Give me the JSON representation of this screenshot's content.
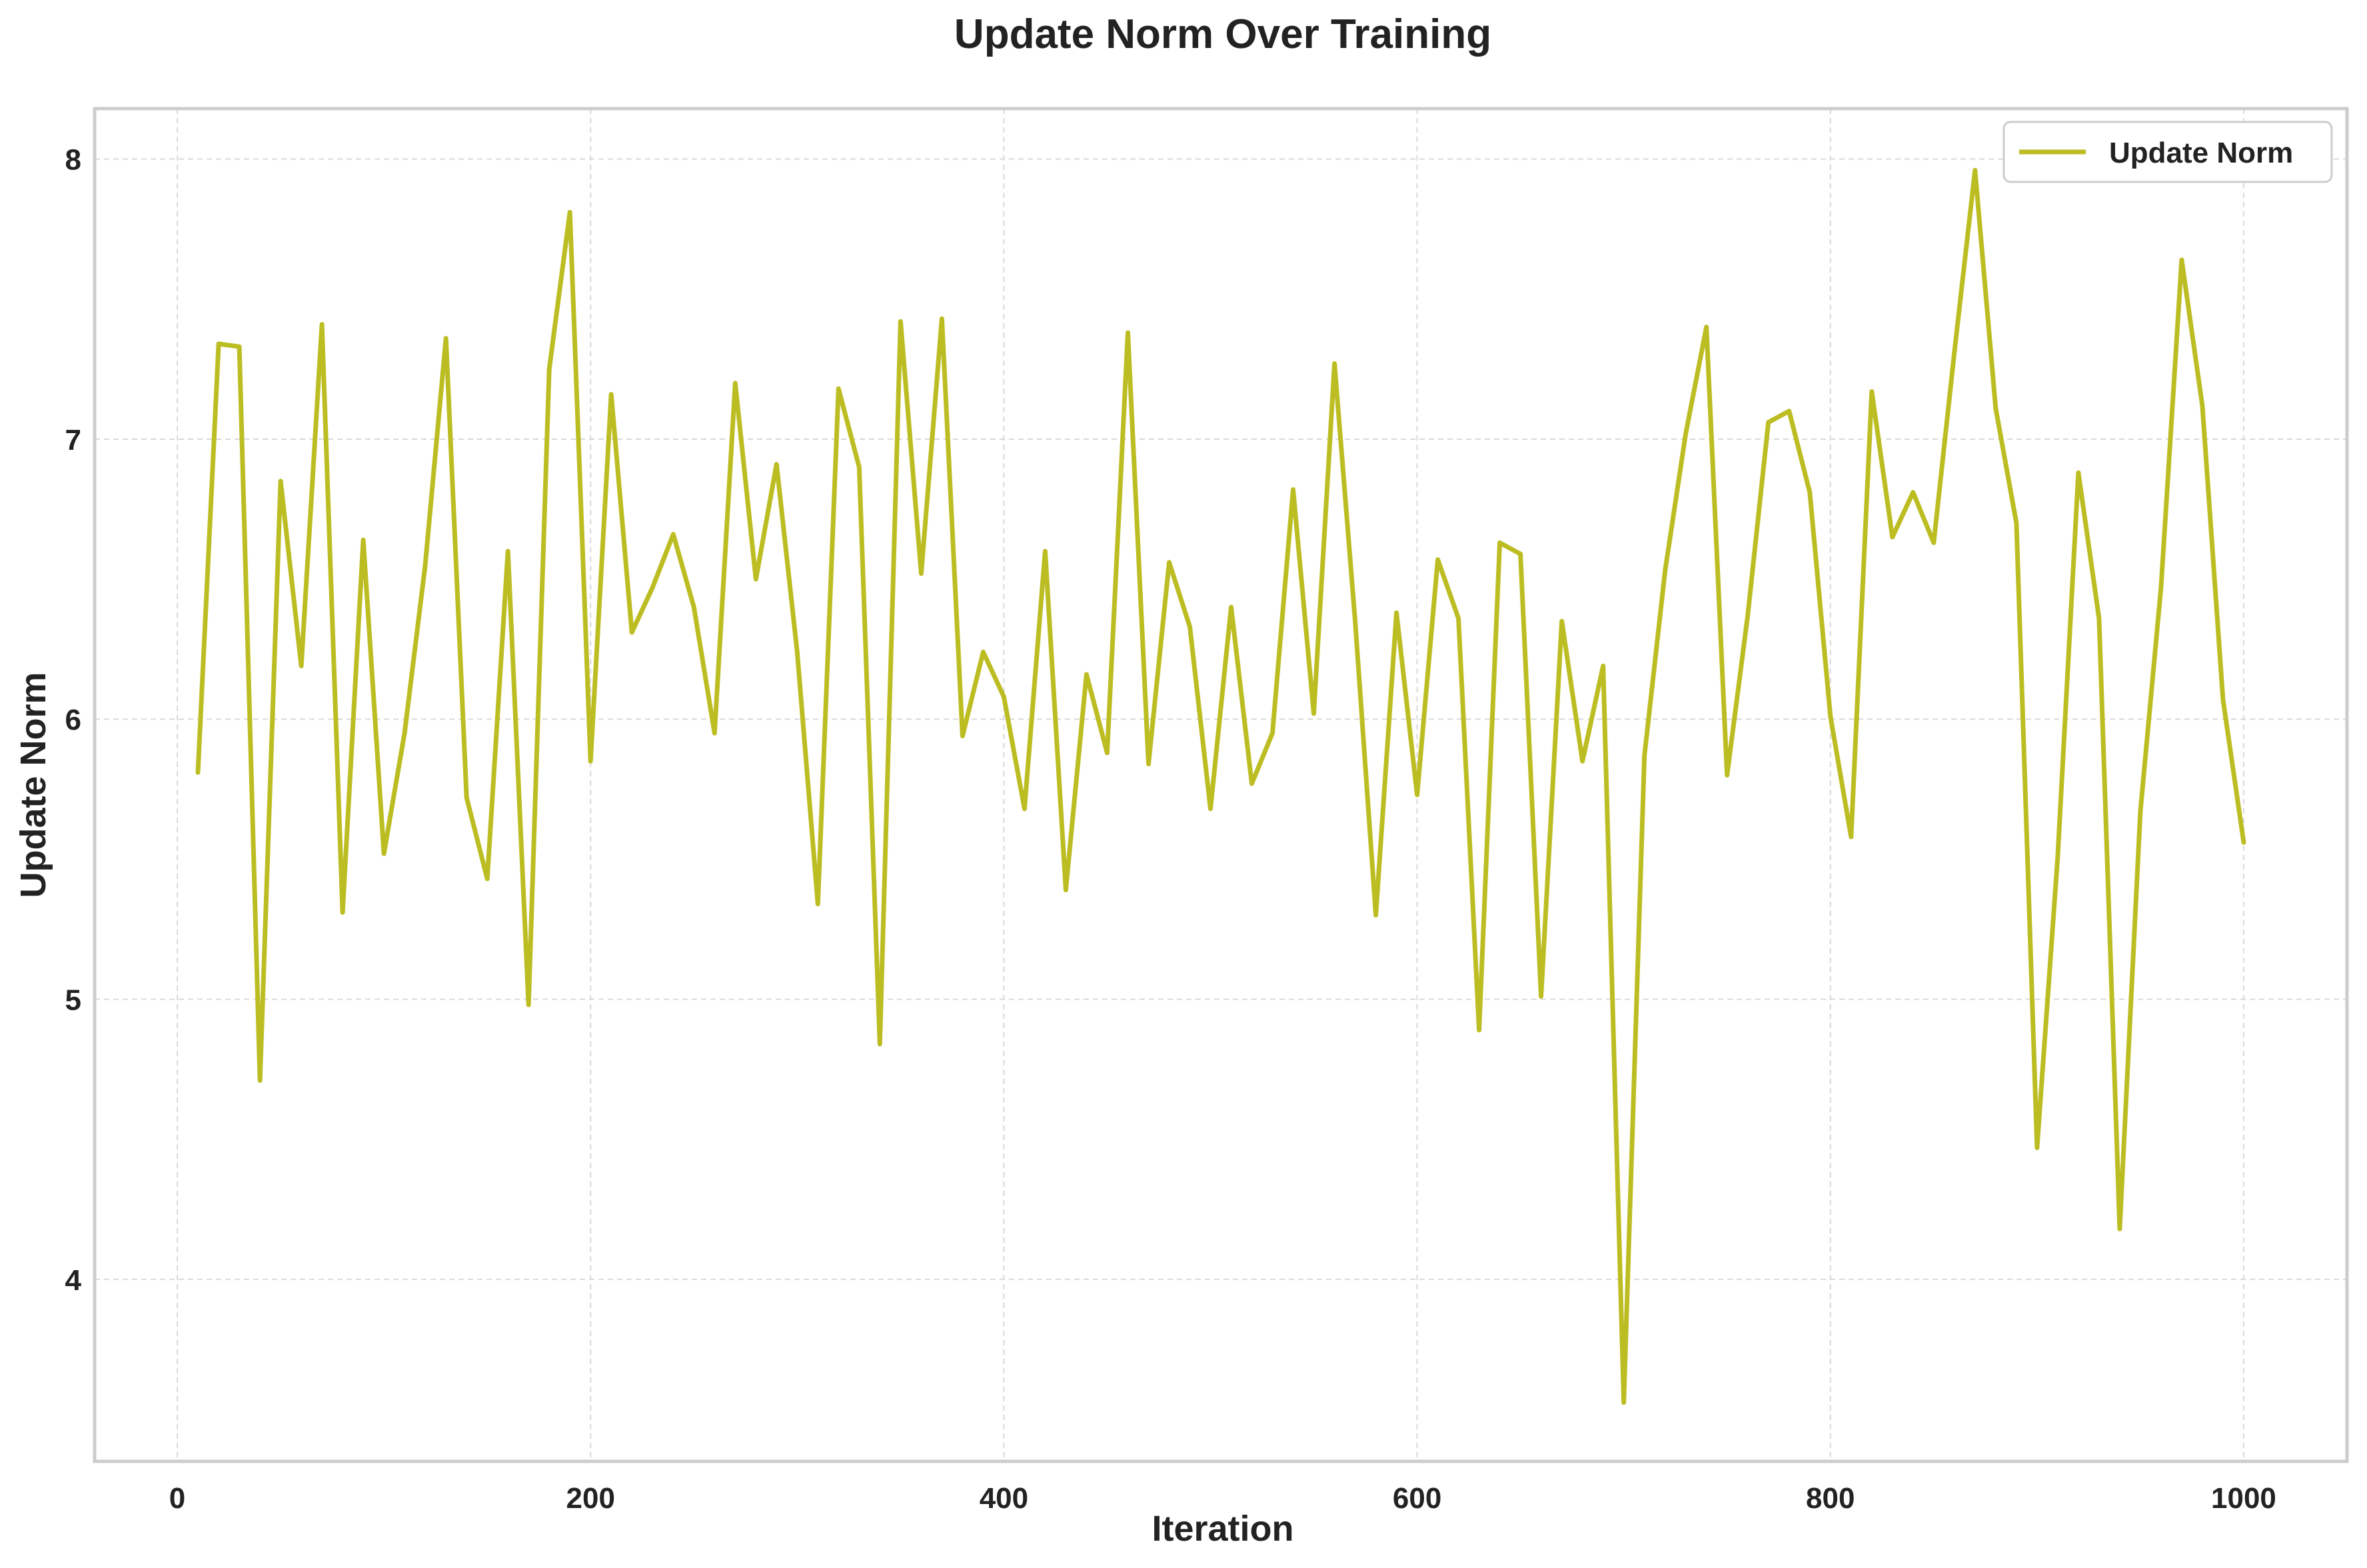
{
  "chart_data": {
    "type": "line",
    "title": "Update Norm Over Training",
    "xlabel": "Iteration",
    "ylabel": "Update Norm",
    "xlim": [
      -40,
      1050
    ],
    "ylim": [
      3.35,
      8.18
    ],
    "xticks": [
      0,
      200,
      400,
      600,
      800,
      1000
    ],
    "yticks": [
      4,
      5,
      6,
      7,
      8
    ],
    "grid": true,
    "legend": {
      "position": "top-right"
    },
    "series": [
      {
        "name": "Update Norm",
        "color": "#bcbd22",
        "x": [
          10,
          20,
          30,
          40,
          50,
          60,
          70,
          80,
          90,
          100,
          110,
          120,
          130,
          140,
          150,
          160,
          170,
          180,
          190,
          200,
          210,
          220,
          230,
          240,
          250,
          260,
          270,
          280,
          290,
          300,
          310,
          320,
          330,
          340,
          350,
          360,
          370,
          380,
          390,
          400,
          410,
          420,
          430,
          440,
          450,
          460,
          470,
          480,
          490,
          500,
          510,
          520,
          530,
          540,
          550,
          560,
          570,
          580,
          590,
          600,
          610,
          620,
          630,
          640,
          650,
          660,
          670,
          680,
          690,
          700,
          710,
          720,
          730,
          740,
          750,
          760,
          770,
          780,
          790,
          800,
          810,
          820,
          830,
          840,
          850,
          860,
          870,
          880,
          890,
          900,
          910,
          920,
          930,
          940,
          950,
          960,
          970,
          980,
          990,
          1000
        ],
        "y": [
          5.81,
          7.34,
          7.33,
          4.71,
          6.85,
          6.19,
          7.41,
          5.31,
          6.64,
          5.52,
          5.95,
          6.55,
          7.36,
          5.72,
          5.43,
          6.6,
          4.98,
          7.25,
          7.81,
          5.85,
          7.16,
          6.31,
          6.47,
          6.66,
          6.4,
          5.95,
          7.2,
          6.5,
          6.91,
          6.24,
          5.34,
          7.18,
          6.9,
          4.84,
          7.42,
          6.52,
          7.43,
          5.94,
          6.24,
          6.08,
          5.68,
          6.6,
          5.39,
          6.16,
          5.88,
          7.38,
          5.84,
          6.56,
          6.33,
          5.68,
          6.4,
          5.77,
          5.95,
          6.82,
          6.02,
          7.27,
          6.35,
          5.3,
          6.38,
          5.73,
          6.57,
          6.36,
          4.89,
          6.63,
          6.59,
          5.01,
          6.35,
          5.85,
          6.19,
          3.56,
          5.87,
          6.53,
          7.02,
          7.4,
          5.8,
          6.37,
          7.06,
          7.1,
          6.81,
          6.01,
          5.58,
          7.17,
          6.65,
          6.81,
          6.63,
          7.31,
          7.96,
          7.11,
          6.7,
          4.47,
          5.51,
          6.88,
          6.36,
          4.18,
          5.67,
          6.47,
          7.64,
          7.12,
          6.07,
          5.56
        ]
      }
    ]
  }
}
